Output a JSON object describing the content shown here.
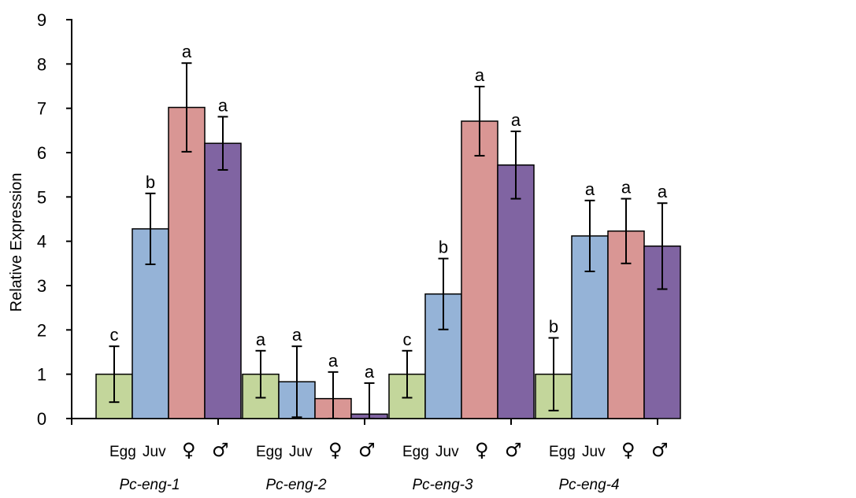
{
  "chart_data": {
    "type": "bar",
    "ylabel": "Relative Expression",
    "xlabel": "",
    "ylim": [
      0,
      9
    ],
    "yticks": [
      0,
      1,
      2,
      3,
      4,
      5,
      6,
      7,
      8,
      9
    ],
    "grid": false,
    "legend": "none",
    "groups": [
      "Pc-eng-1",
      "Pc-eng-2",
      "Pc-eng-3",
      "Pc-eng-4"
    ],
    "stage_labels": {
      "egg": "Egg",
      "juv": "Juv",
      "female": "♀",
      "male": "♂"
    },
    "series": [
      {
        "key": "egg",
        "color": "#c3d69b",
        "values": [
          1.0,
          1.0,
          1.0,
          1.0
        ],
        "error": [
          0.63,
          0.53,
          0.53,
          0.82
        ],
        "significance": [
          "c",
          "a",
          "c",
          "b"
        ]
      },
      {
        "key": "juv",
        "color": "#95b3d7",
        "values": [
          4.28,
          0.83,
          2.81,
          4.12
        ],
        "error": [
          0.8,
          0.8,
          0.8,
          0.8
        ],
        "significance": [
          "b",
          "a",
          "b",
          "a"
        ]
      },
      {
        "key": "female",
        "color": "#d99694",
        "values": [
          7.02,
          0.45,
          6.71,
          4.23
        ],
        "error": [
          1.0,
          0.6,
          0.78,
          0.73
        ],
        "significance": [
          "a",
          "a",
          "a",
          "a"
        ]
      },
      {
        "key": "male",
        "color": "#8064a2",
        "values": [
          6.21,
          0.1,
          5.72,
          3.89
        ],
        "error": [
          0.6,
          0.7,
          0.76,
          0.97
        ],
        "significance": [
          "a",
          "a",
          "a",
          "a"
        ]
      }
    ]
  }
}
